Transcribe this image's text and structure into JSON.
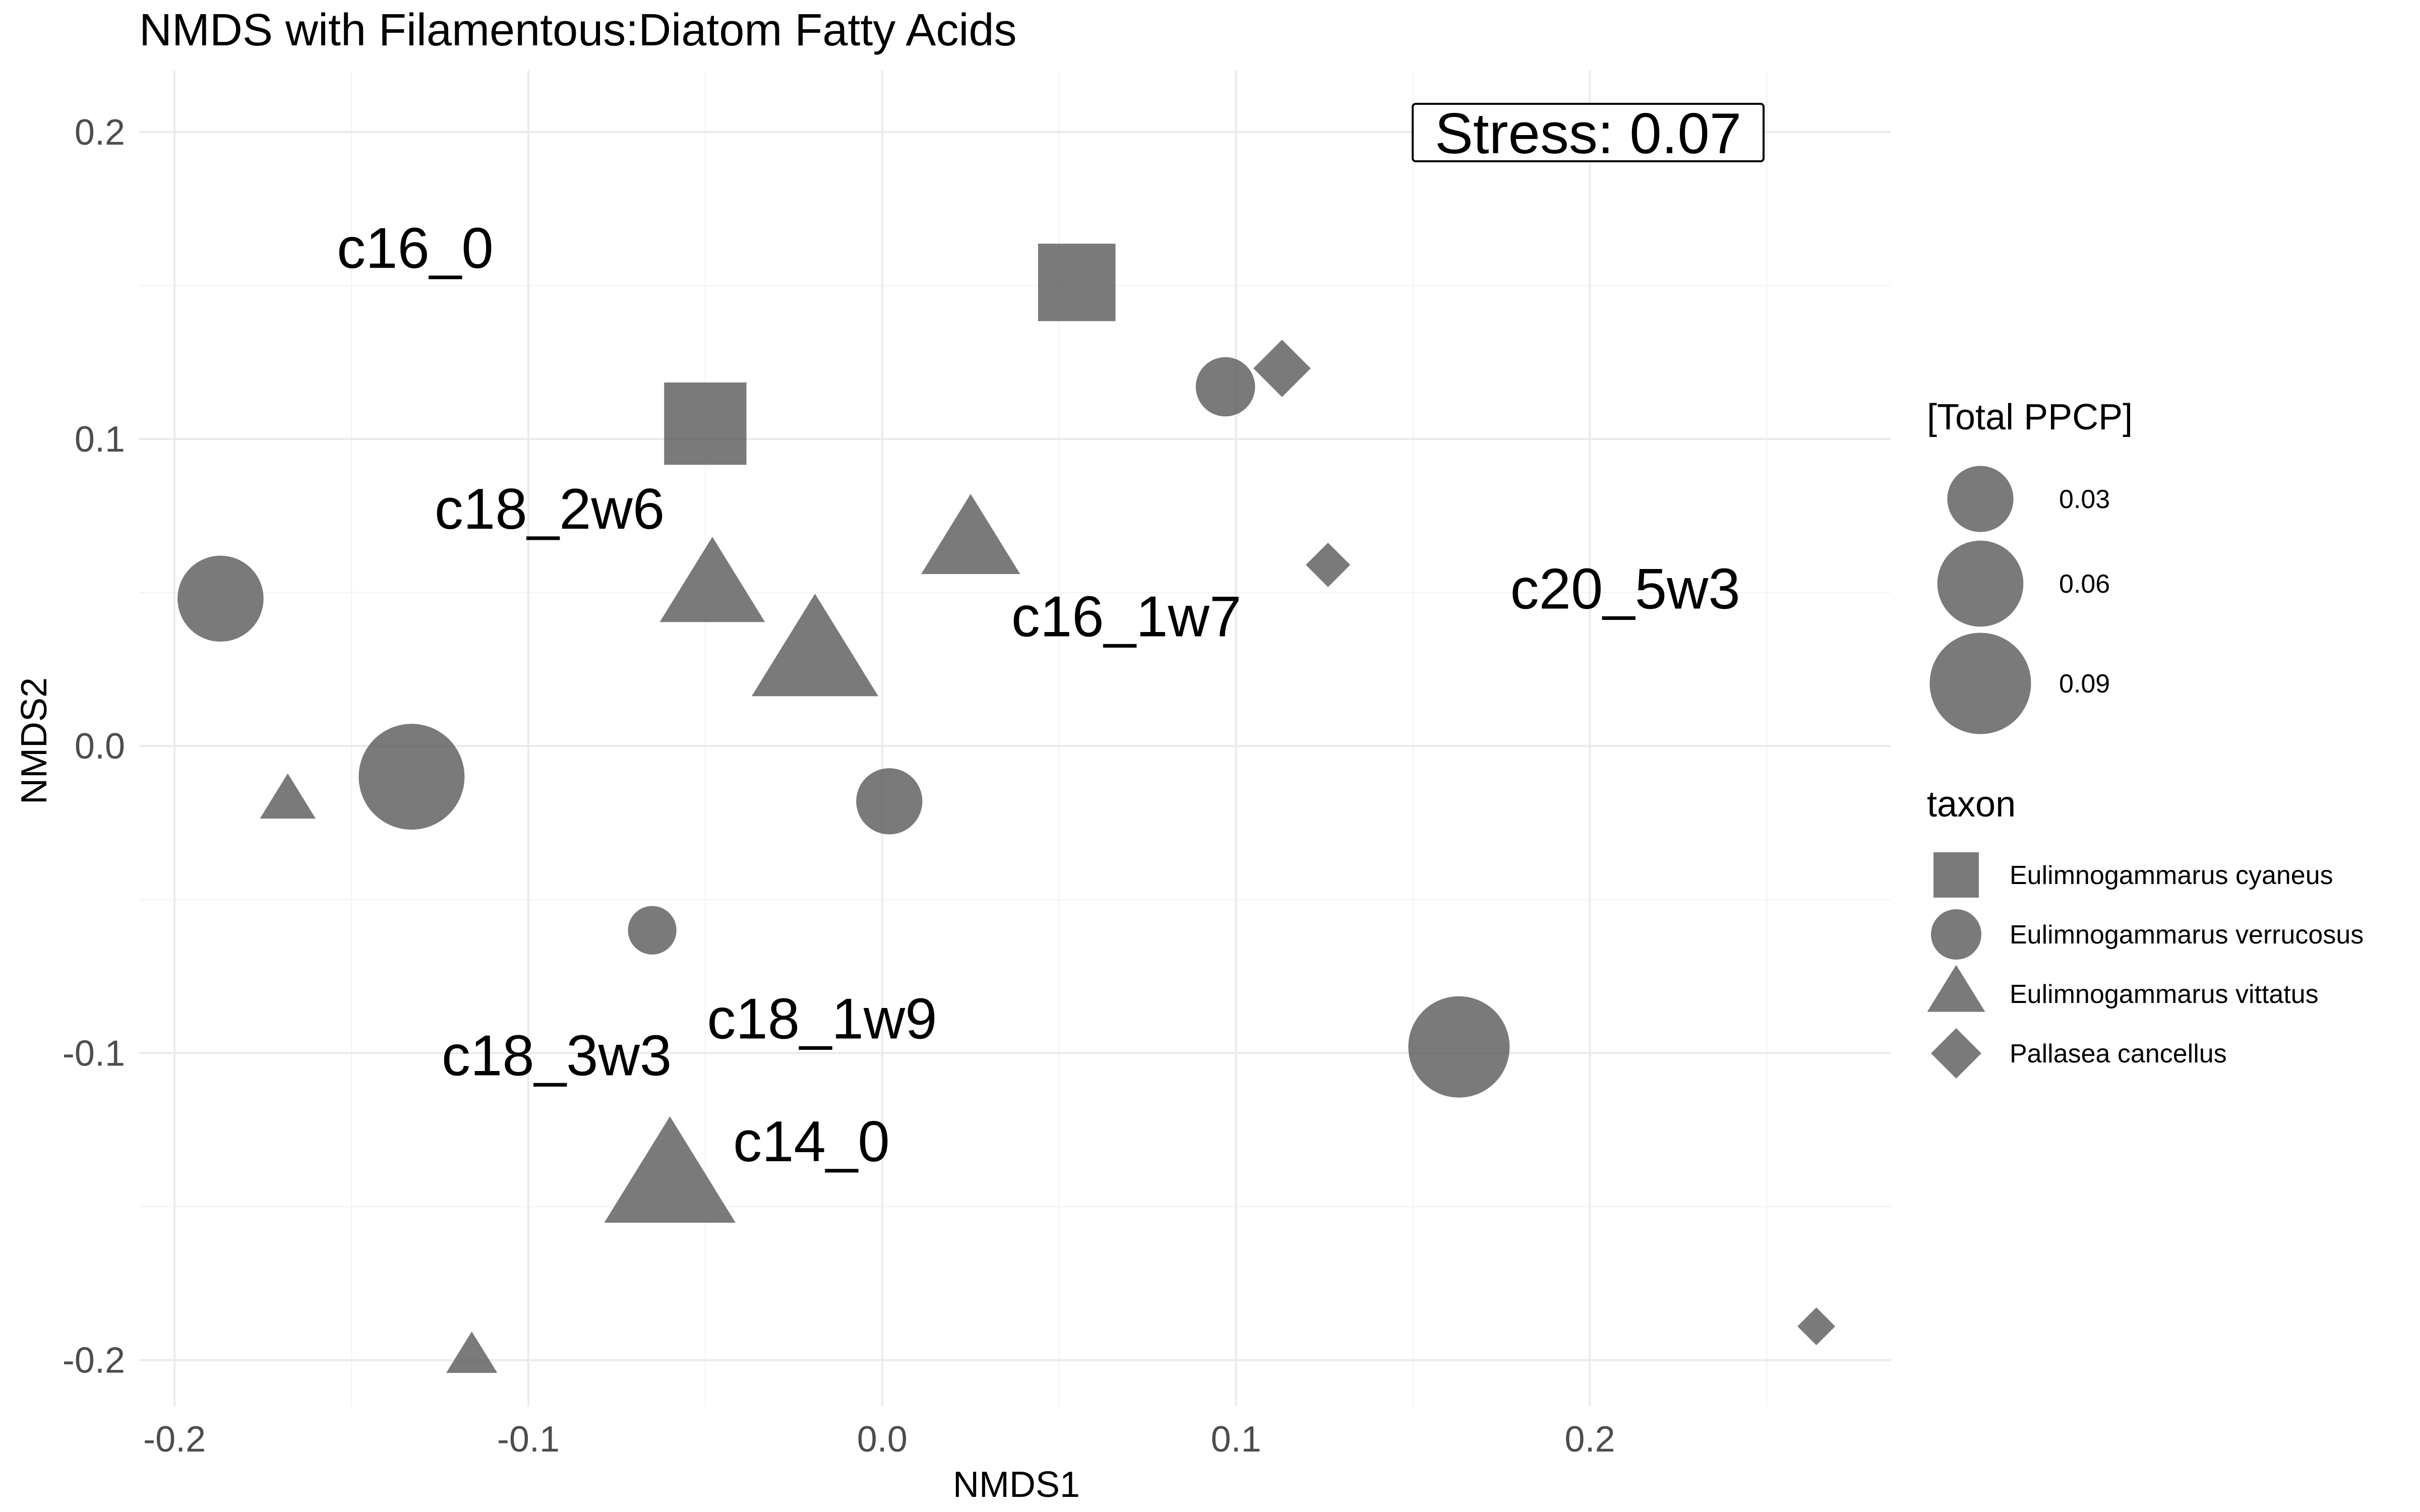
{
  "chart_data": {
    "type": "scatter",
    "title": "NMDS with Filamentous:Diatom Fatty Acids",
    "xlabel": "NMDS1",
    "ylabel": "NMDS2",
    "xlim": [
      -0.21,
      0.285
    ],
    "ylim": [
      -0.215,
      0.22
    ],
    "x_ticks": [
      -0.2,
      -0.1,
      0.0,
      0.1,
      0.2
    ],
    "x_tick_labels": [
      "-0.2",
      "-0.1",
      "0.0",
      "0.1",
      "0.2"
    ],
    "y_ticks": [
      -0.2,
      -0.1,
      0.0,
      0.1,
      0.2
    ],
    "y_tick_labels": [
      "-0.2",
      "-0.1",
      "0.0",
      "0.1",
      "0.2"
    ],
    "grid": true,
    "marker_color": "#595959",
    "marker_opacity": 0.8,
    "stress_label": "Stress:  0.07",
    "legend_position": "right",
    "size_legend": {
      "title": "[Total PPCP]",
      "entries": [
        {
          "label": "0.03",
          "value": 0.03
        },
        {
          "label": "0.06",
          "value": 0.06
        },
        {
          "label": "0.09",
          "value": 0.09
        }
      ]
    },
    "shape_legend": {
      "title": "taxon",
      "entries": [
        {
          "label": "Eulimnogammarus cyaneus",
          "shape": "square"
        },
        {
          "label": "Eulimnogammarus verrucosus",
          "shape": "circle"
        },
        {
          "label": "Eulimnogammarus vittatus",
          "shape": "triangle"
        },
        {
          "label": "Pallasea cancellus",
          "shape": "diamond"
        }
      ]
    },
    "points": [
      {
        "x": 0.055,
        "y": 0.151,
        "taxon": "Eulimnogammarus cyaneus",
        "ppcp": 0.06
      },
      {
        "x": -0.05,
        "y": 0.105,
        "taxon": "Eulimnogammarus cyaneus",
        "ppcp": 0.07
      },
      {
        "x": 0.097,
        "y": 0.117,
        "taxon": "Eulimnogammarus verrucosus",
        "ppcp": 0.022
      },
      {
        "x": -0.187,
        "y": 0.048,
        "taxon": "Eulimnogammarus verrucosus",
        "ppcp": 0.06
      },
      {
        "x": -0.133,
        "y": -0.01,
        "taxon": "Eulimnogammarus verrucosus",
        "ppcp": 0.1
      },
      {
        "x": 0.002,
        "y": -0.018,
        "taxon": "Eulimnogammarus verrucosus",
        "ppcp": 0.03
      },
      {
        "x": -0.065,
        "y": -0.06,
        "taxon": "Eulimnogammarus verrucosus",
        "ppcp": 0.012
      },
      {
        "x": 0.163,
        "y": -0.098,
        "taxon": "Eulimnogammarus verrucosus",
        "ppcp": 0.09
      },
      {
        "x": 0.025,
        "y": 0.066,
        "taxon": "Eulimnogammarus vittatus",
        "ppcp": 0.06
      },
      {
        "x": -0.048,
        "y": 0.051,
        "taxon": "Eulimnogammarus vittatus",
        "ppcp": 0.07
      },
      {
        "x": -0.019,
        "y": 0.029,
        "taxon": "Eulimnogammarus vittatus",
        "ppcp": 0.11
      },
      {
        "x": -0.168,
        "y": -0.018,
        "taxon": "Eulimnogammarus vittatus",
        "ppcp": 0.012
      },
      {
        "x": -0.06,
        "y": -0.142,
        "taxon": "Eulimnogammarus vittatus",
        "ppcp": 0.12
      },
      {
        "x": -0.116,
        "y": -0.199,
        "taxon": "Eulimnogammarus vittatus",
        "ppcp": 0.009
      },
      {
        "x": 0.113,
        "y": 0.123,
        "taxon": "Pallasea cancellus",
        "ppcp": 0.02
      },
      {
        "x": 0.126,
        "y": 0.059,
        "taxon": "Pallasea cancellus",
        "ppcp": 0.009
      },
      {
        "x": 0.264,
        "y": -0.189,
        "taxon": "Pallasea cancellus",
        "ppcp": 0.005
      }
    ],
    "variable_labels": [
      {
        "text": "c16_0",
        "x": -0.132,
        "y": 0.162
      },
      {
        "text": "c18_2w6",
        "x": -0.094,
        "y": 0.077
      },
      {
        "text": "c16_1w7",
        "x": 0.069,
        "y": 0.042
      },
      {
        "text": "c20_5w3",
        "x": 0.21,
        "y": 0.051
      },
      {
        "text": "c18_1w9",
        "x": -0.017,
        "y": -0.089
      },
      {
        "text": "c18_3w3",
        "x": -0.092,
        "y": -0.101
      },
      {
        "text": "c14_0",
        "x": -0.02,
        "y": -0.129
      }
    ]
  }
}
